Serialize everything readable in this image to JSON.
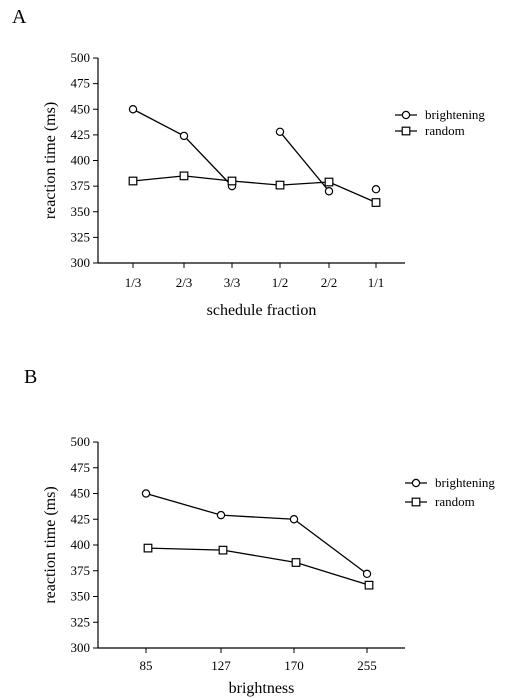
{
  "panels": {
    "a_label": "A",
    "b_label": "B"
  },
  "chart_data": [
    {
      "type": "line",
      "panel": "A",
      "categories": [
        "1/3",
        "2/3",
        "3/3",
        "1/2",
        "2/2",
        "1/1"
      ],
      "xlabel": "schedule fraction",
      "ylabel": "reaction time (ms)",
      "ylim": [
        300,
        500
      ],
      "yticks": [
        300,
        325,
        350,
        375,
        400,
        425,
        450,
        475,
        500
      ],
      "grid": false,
      "legend": "right",
      "series": [
        {
          "name": "brightening",
          "marker": "circle",
          "values": [
            450,
            424,
            375,
            428,
            370,
            372
          ],
          "segments": [
            [
              0,
              2
            ],
            [
              3,
              4
            ]
          ]
        },
        {
          "name": "random",
          "marker": "square",
          "values": [
            380,
            385,
            380,
            376,
            379,
            359
          ],
          "segments": [
            [
              0,
              5
            ]
          ]
        }
      ]
    },
    {
      "type": "line",
      "panel": "B",
      "categories": [
        "85",
        "127",
        "170",
        "255"
      ],
      "xlabel": "brightness",
      "ylabel": "reaction time (ms)",
      "ylim": [
        300,
        500
      ],
      "yticks": [
        300,
        325,
        350,
        375,
        400,
        425,
        450,
        475,
        500
      ],
      "grid": false,
      "legend": "right",
      "series": [
        {
          "name": "brightening",
          "marker": "circle",
          "values": [
            450,
            429,
            425,
            372
          ],
          "segments": [
            [
              0,
              3
            ]
          ]
        },
        {
          "name": "random",
          "marker": "square",
          "values": [
            397,
            395,
            383,
            361
          ],
          "segments": [
            [
              0,
              3
            ]
          ]
        }
      ]
    }
  ]
}
